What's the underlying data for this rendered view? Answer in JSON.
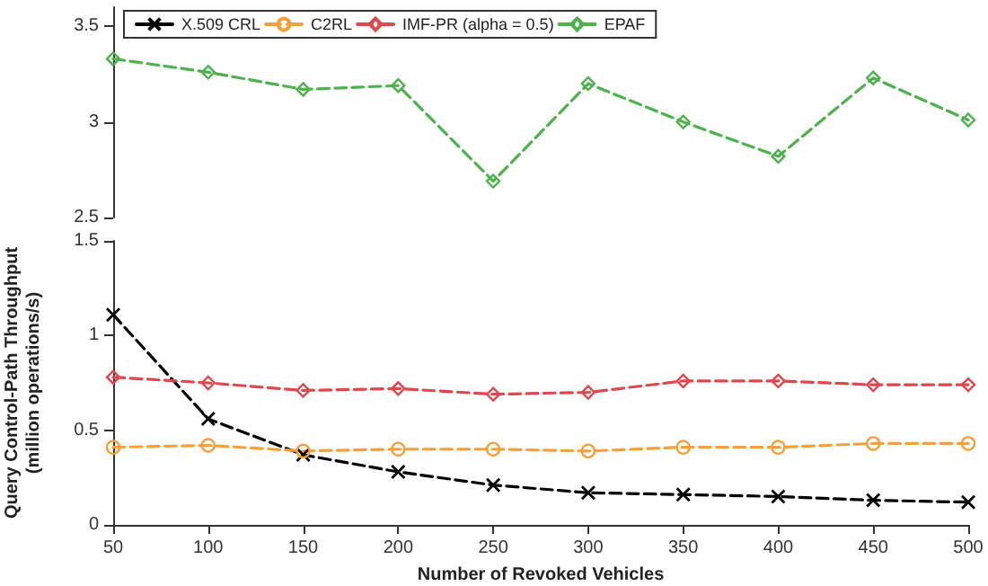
{
  "chart_data": [
    {
      "type": "line",
      "x": [
        50,
        100,
        150,
        200,
        250,
        300,
        350,
        400,
        450,
        500
      ],
      "xlim": [
        50,
        500
      ],
      "ylim": [
        2.5,
        3.6
      ],
      "yticks": [
        2.5,
        3.0,
        3.5
      ],
      "tick_labels": "y",
      "legend": "top",
      "line_style": "dashed",
      "grid": false,
      "series": [
        {
          "name": "X.509 CRL",
          "color": "#000000",
          "marker": "cross",
          "values": [
            null,
            null,
            null,
            null,
            null,
            null,
            null,
            null,
            null,
            null
          ]
        },
        {
          "name": "C2RL",
          "color": "#f5a03a",
          "marker": "circle",
          "values": [
            null,
            null,
            null,
            null,
            null,
            null,
            null,
            null,
            null,
            null
          ]
        },
        {
          "name": "IMF-PR (alpha = 0.5)",
          "color": "#e0474c",
          "marker": "diamond",
          "values": [
            null,
            null,
            null,
            null,
            null,
            null,
            null,
            null,
            null,
            null
          ]
        },
        {
          "name": "EPAF",
          "color": "#4cb24c",
          "marker": "diamond",
          "values": [
            3.33,
            3.26,
            3.17,
            3.19,
            2.69,
            3.2,
            3.0,
            2.82,
            3.23,
            3.01
          ]
        }
      ]
    },
    {
      "type": "line",
      "x": [
        50,
        100,
        150,
        200,
        250,
        300,
        350,
        400,
        450,
        500
      ],
      "xlim": [
        50,
        500
      ],
      "xticks": [
        50,
        100,
        150,
        200,
        250,
        300,
        350,
        400,
        450,
        500
      ],
      "ylim": [
        0,
        1.5
      ],
      "yticks": [
        0.0,
        0.5,
        1.0,
        1.5
      ],
      "xlabel": "Number of Revoked Vehicles",
      "ylabel": "Query Control-Path Throughput\n(million operations/s)",
      "line_style": "dashed",
      "grid": false,
      "series": [
        {
          "color": "#000000",
          "marker": "cross",
          "values": [
            1.11,
            0.56,
            0.37,
            0.28,
            0.21,
            0.17,
            0.16,
            0.15,
            0.13,
            0.12
          ]
        },
        {
          "color": "#f5a03a",
          "marker": "circle",
          "values": [
            0.41,
            0.42,
            0.39,
            0.4,
            0.4,
            0.39,
            0.41,
            0.41,
            0.43,
            0.43
          ]
        },
        {
          "color": "#e0474c",
          "marker": "diamond",
          "values": [
            0.78,
            0.75,
            0.71,
            0.72,
            0.69,
            0.7,
            0.76,
            0.76,
            0.74,
            0.74
          ]
        }
      ]
    }
  ]
}
